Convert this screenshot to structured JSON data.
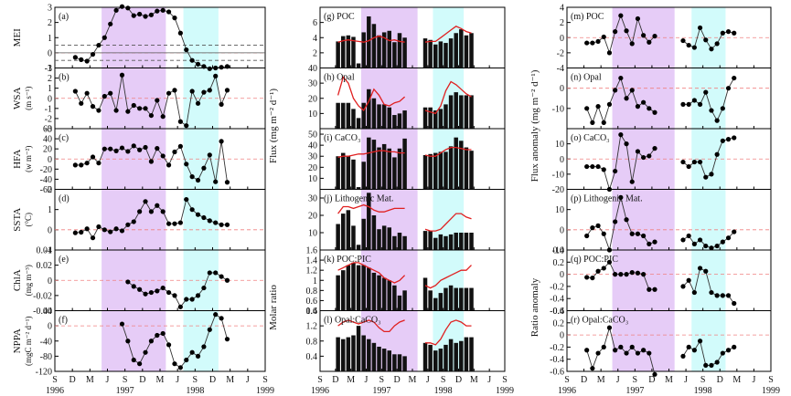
{
  "colors": {
    "purple": "#e6ccf7",
    "cyan": "#d2fbfb",
    "bar": "#111111",
    "model_line": "#e02020",
    "zero_line": "#f08080",
    "mei_ref_line": "#555555"
  },
  "shading": {
    "elnino_month": [
      8,
      19
    ],
    "lanina_month": [
      22,
      28
    ]
  },
  "x_axis": {
    "months": [
      "S",
      "D",
      "M",
      "J",
      "S",
      "D",
      "M",
      "J",
      "S",
      "D",
      "M",
      "J",
      "S"
    ],
    "years": [
      "1996",
      "1997",
      "1998",
      "1999"
    ]
  },
  "column_labels": {
    "flux": "Flux (mg m⁻² d⁻¹)",
    "molar_ratio": "Molar ratio",
    "flux_anomaly": "Flux anomaly (mg m⁻² d⁻¹)",
    "ratio_anomaly": "Ratio anomaly"
  },
  "chart_data": [
    {
      "id": "a",
      "type": "line",
      "label": "(a)",
      "ylabel": "MEI",
      "ylim": [
        -1,
        3
      ],
      "yticks": [
        -1,
        0,
        1,
        2,
        3
      ],
      "ref_lines": [
        0.5,
        -0.5
      ],
      "x": [
        3,
        4,
        5,
        6,
        7,
        8,
        9,
        10,
        11,
        12,
        13,
        14,
        15,
        16,
        17,
        18,
        19,
        20,
        21,
        22,
        23,
        24,
        25,
        26,
        27,
        28,
        29
      ],
      "values": [
        -0.3,
        -0.45,
        -0.55,
        -0.1,
        0.5,
        1.0,
        1.9,
        2.8,
        3.05,
        2.95,
        2.45,
        2.55,
        2.4,
        2.5,
        2.75,
        2.8,
        2.7,
        2.3,
        1.3,
        0.2,
        -0.5,
        -0.75,
        -0.9,
        -1.05,
        -1.0,
        -0.95,
        -0.9
      ]
    },
    {
      "id": "b",
      "type": "line",
      "label": "(b)",
      "ylabel": "WSA",
      "yunit": "(m s⁻¹)",
      "ylim": [
        -3,
        3
      ],
      "yticks": [
        -3,
        -2,
        -1,
        0,
        1,
        2,
        3
      ],
      "x": [
        3,
        4,
        5,
        6,
        7,
        8,
        9,
        10,
        11,
        12,
        13,
        14,
        15,
        16,
        17,
        18,
        19,
        20,
        21,
        22,
        23,
        24,
        25,
        26,
        27,
        28,
        29
      ],
      "values": [
        0.7,
        -0.5,
        0.5,
        -0.8,
        -1.2,
        0.2,
        0.5,
        -1.2,
        2.3,
        -1.3,
        -0.7,
        -1.0,
        -1.0,
        -1.7,
        -0.2,
        -1.8,
        0.5,
        0.8,
        -2.3,
        -2.7,
        0.7,
        -0.5,
        0.6,
        0.8,
        2.2,
        -0.6,
        0.8
      ]
    },
    {
      "id": "c",
      "type": "line",
      "label": "(c)",
      "ylabel": "HFA",
      "yunit": "(w m⁻²)",
      "ylim": [
        -60,
        60
      ],
      "yticks": [
        -60,
        -40,
        -20,
        0,
        20,
        40,
        60
      ],
      "x": [
        3,
        4,
        5,
        6,
        7,
        8,
        9,
        10,
        11,
        12,
        13,
        14,
        15,
        16,
        17,
        18,
        19,
        20,
        21,
        22,
        23,
        24,
        25,
        26,
        27,
        28,
        29
      ],
      "values": [
        -12,
        -12,
        -8,
        4,
        -8,
        20,
        20,
        16,
        22,
        15,
        26,
        18,
        23,
        -5,
        21,
        6,
        -12,
        14,
        25,
        -10,
        -35,
        -42,
        -18,
        8,
        -45,
        35,
        -46
      ]
    },
    {
      "id": "d",
      "type": "line",
      "label": "(d)",
      "ylabel": "SSTA",
      "yunit": "(°C)",
      "ylim": [
        -1,
        2
      ],
      "yticks": [
        -1,
        0,
        1,
        2
      ],
      "x": [
        3,
        4,
        5,
        6,
        7,
        8,
        9,
        10,
        11,
        12,
        13,
        14,
        15,
        16,
        17,
        18,
        19,
        20,
        21,
        22,
        23,
        24,
        25,
        26,
        27,
        28,
        29
      ],
      "values": [
        -0.15,
        -0.12,
        0.05,
        -0.4,
        0.15,
        0.0,
        -0.1,
        0.05,
        -0.05,
        0.25,
        0.4,
        0.9,
        1.4,
        0.9,
        1.2,
        0.9,
        0.3,
        0.3,
        0.35,
        1.5,
        1.0,
        0.75,
        0.6,
        0.45,
        0.35,
        0.25,
        0.25
      ]
    },
    {
      "id": "e",
      "type": "line",
      "label": "(e)",
      "ylabel": "ChlA",
      "yunit": "(mg m⁻³)",
      "ylim": [
        -0.04,
        0.04
      ],
      "yticks": [
        -0.04,
        -0.02,
        0.0,
        0.02,
        0.04
      ],
      "x": [
        12,
        13,
        14,
        15,
        16,
        17,
        18,
        19,
        20,
        21,
        22,
        23,
        24,
        25,
        26,
        27,
        28,
        29
      ],
      "values": [
        -0.002,
        -0.008,
        -0.012,
        -0.018,
        -0.016,
        -0.014,
        -0.01,
        -0.016,
        -0.02,
        -0.035,
        -0.025,
        -0.025,
        -0.02,
        -0.01,
        0.01,
        0.01,
        0.005,
        0.0
      ]
    },
    {
      "id": "f",
      "type": "line",
      "label": "(f)",
      "ylabel": "NPPA",
      "yunit": "(mgC m⁻² d⁻¹)",
      "ylim": [
        -120,
        40
      ],
      "yticks": [
        -120,
        -80,
        -40,
        0,
        40
      ],
      "x": [
        11,
        12,
        13,
        14,
        15,
        16,
        17,
        18,
        19,
        20,
        21,
        22,
        23,
        24,
        25,
        26,
        27,
        28,
        29
      ],
      "values": [
        5,
        -40,
        -90,
        -100,
        -70,
        -40,
        -25,
        -20,
        -50,
        -100,
        -110,
        -90,
        -70,
        -80,
        -55,
        -10,
        30,
        20,
        -35
      ]
    },
    {
      "id": "g",
      "type": "bar",
      "label": "(g) POC",
      "ylim": [
        0,
        8
      ],
      "yticks": [
        2,
        4,
        6
      ],
      "x": [
        3,
        4,
        5,
        6,
        7,
        8,
        9,
        10,
        11,
        12,
        13,
        14,
        15,
        16,
        20,
        21,
        22,
        23,
        24,
        25,
        26,
        27,
        28,
        29
      ],
      "values": [
        3.5,
        4.2,
        4.3,
        4.1,
        0.6,
        4.7,
        6.8,
        5.8,
        4.3,
        4.7,
        4.9,
        3.4,
        4.6,
        4.0,
        3.9,
        3.7,
        3.1,
        3.5,
        3.3,
        3.9,
        4.6,
        5.1,
        4.3,
        4.6
      ],
      "model": [
        3.4,
        3.6,
        3.7,
        3.6,
        3.5,
        3.4,
        3.6,
        4.0,
        4.2,
        4.0,
        3.6,
        3.7,
        3.5,
        3.4,
        3.4,
        3.5,
        3.5,
        4.0,
        4.5,
        5.0,
        5.5,
        5.2,
        4.8,
        4.6
      ]
    },
    {
      "id": "h",
      "type": "bar",
      "label": "(h) Opal",
      "ylim": [
        0,
        40
      ],
      "yticks": [
        10,
        20,
        30,
        40
      ],
      "x": [
        3,
        4,
        5,
        6,
        7,
        8,
        9,
        10,
        11,
        12,
        13,
        14,
        15,
        16,
        20,
        21,
        22,
        23,
        24,
        25,
        26,
        27,
        28,
        29
      ],
      "values": [
        17,
        17,
        17,
        13,
        7,
        17,
        26,
        20,
        16,
        16,
        14,
        9,
        10,
        12,
        14,
        14,
        12,
        13,
        16,
        22,
        24,
        22,
        22,
        22
      ],
      "model": [
        22,
        34,
        30,
        20,
        15,
        12,
        18,
        26,
        22,
        16,
        15,
        17,
        18,
        21,
        12,
        11,
        10,
        15,
        25,
        31,
        29,
        26,
        23,
        21
      ]
    },
    {
      "id": "i",
      "type": "bar",
      "label": "(i) CaCO₃",
      "ylim": [
        0,
        55
      ],
      "yticks": [
        10,
        20,
        30,
        40,
        50
      ],
      "x": [
        3,
        4,
        5,
        6,
        7,
        8,
        9,
        10,
        11,
        12,
        13,
        14,
        15,
        16,
        20,
        21,
        22,
        23,
        24,
        25,
        26,
        27,
        28,
        29
      ],
      "values": [
        30,
        33,
        30,
        27,
        2,
        25,
        47,
        45,
        38,
        41,
        37,
        29,
        37,
        46,
        31,
        32,
        33,
        34,
        34,
        39,
        47,
        44,
        38,
        35
      ],
      "model": [
        29,
        30,
        30,
        31,
        32,
        32,
        33,
        34,
        35,
        35,
        34,
        34,
        33,
        33,
        31,
        30,
        30,
        33,
        36,
        38,
        38,
        37,
        36,
        36
      ]
    },
    {
      "id": "j",
      "type": "bar",
      "label": "(j) Lithogenic Mat.",
      "ylim": [
        0,
        35
      ],
      "yticks": [
        10,
        20,
        30
      ],
      "x": [
        3,
        4,
        5,
        6,
        7,
        8,
        9,
        10,
        11,
        12,
        13,
        14,
        15,
        16,
        20,
        21,
        22,
        23,
        24,
        25,
        26,
        27,
        28,
        29
      ],
      "values": [
        15,
        21,
        23,
        14,
        3,
        18,
        33,
        20,
        12,
        14,
        13,
        8,
        10,
        8,
        11,
        11,
        7,
        9,
        8,
        9,
        10,
        10,
        10,
        10
      ],
      "model": [
        21,
        25,
        25,
        24,
        25,
        26,
        25,
        23,
        22,
        22,
        23,
        24,
        24,
        24,
        12,
        11,
        11,
        12,
        15,
        18,
        21,
        21,
        19,
        18
      ]
    },
    {
      "id": "k",
      "type": "bar",
      "label": "(k) POC:PIC",
      "ylim": [
        0.4,
        1.6
      ],
      "yticks": [
        0.4,
        0.6,
        0.8,
        1.0,
        1.2,
        1.4,
        1.6
      ],
      "x": [
        3,
        4,
        5,
        6,
        7,
        8,
        9,
        10,
        11,
        12,
        13,
        14,
        15,
        16,
        20,
        21,
        22,
        23,
        24,
        25,
        26,
        27,
        28,
        29
      ],
      "values": [
        1.1,
        1.2,
        1.3,
        1.35,
        1.3,
        1.3,
        1.25,
        1.15,
        1.1,
        1.05,
        1.0,
        0.9,
        0.7,
        0.8,
        1.05,
        0.8,
        0.65,
        0.75,
        0.85,
        0.9,
        0.85,
        0.85,
        0.85,
        0.85
      ],
      "model": [
        1.2,
        1.25,
        1.3,
        1.35,
        1.35,
        1.3,
        1.25,
        1.2,
        1.15,
        1.05,
        1.0,
        0.95,
        1.0,
        1.1,
        0.9,
        0.85,
        0.9,
        1.0,
        1.05,
        1.1,
        1.15,
        1.2,
        1.2,
        1.3
      ]
    },
    {
      "id": "l",
      "type": "bar",
      "label": "(l) Opal:CaCO₃",
      "ylim": [
        0,
        1.6
      ],
      "yticks": [
        0.4,
        0.8,
        1.2,
        1.6
      ],
      "x": [
        3,
        4,
        5,
        6,
        7,
        8,
        9,
        10,
        11,
        12,
        13,
        14,
        15,
        16,
        20,
        21,
        22,
        23,
        24,
        25,
        26,
        27,
        28,
        29
      ],
      "values": [
        0.9,
        0.85,
        0.9,
        0.95,
        1.2,
        0.95,
        0.85,
        0.75,
        0.65,
        0.6,
        0.55,
        0.45,
        0.45,
        0.4,
        0.75,
        0.7,
        0.55,
        0.6,
        0.7,
        0.85,
        0.75,
        0.8,
        0.9,
        0.9
      ],
      "model": [
        1.2,
        1.3,
        1.35,
        1.3,
        1.25,
        1.3,
        1.35,
        1.3,
        1.15,
        1.05,
        1.05,
        1.2,
        1.3,
        1.35,
        0.75,
        0.75,
        0.7,
        0.85,
        1.1,
        1.3,
        1.35,
        1.3,
        1.2,
        1.2
      ]
    },
    {
      "id": "m",
      "type": "line",
      "label": "(m) POC",
      "ylim": [
        -4,
        4
      ],
      "yticks": [
        -4,
        -2,
        0,
        2,
        4
      ],
      "x": [
        3,
        4,
        5,
        6,
        7,
        8,
        9,
        10,
        11,
        12,
        13,
        14,
        15,
        20,
        21,
        22,
        23,
        24,
        25,
        26,
        27,
        28,
        29
      ],
      "values": [
        -0.7,
        -0.7,
        -0.5,
        0.1,
        -2.0,
        0.8,
        2.9,
        0.9,
        -0.8,
        2.5,
        0.3,
        -0.6,
        0.2,
        -0.4,
        -1.0,
        -1.3,
        1.3,
        -0.3,
        -1.5,
        -0.8,
        0.6,
        0.8,
        0.6
      ]
    },
    {
      "id": "n",
      "type": "line",
      "label": "(n) Opal",
      "ylim": [
        -20,
        10
      ],
      "yticks": [
        -10,
        0
      ],
      "x": [
        3,
        4,
        5,
        6,
        7,
        8,
        9,
        10,
        11,
        12,
        13,
        14,
        15,
        20,
        21,
        22,
        23,
        24,
        25,
        26,
        27,
        28,
        29
      ],
      "values": [
        -10,
        -17,
        -9,
        -17,
        -8,
        -1,
        5,
        -5,
        -1,
        -9,
        -7,
        -10,
        -12,
        -8,
        -8,
        -6,
        -8,
        -2,
        -11,
        -16,
        -10,
        0,
        5
      ]
    },
    {
      "id": "o",
      "type": "line",
      "label": "(o) CaCO₃",
      "ylim": [
        -20,
        20
      ],
      "yticks": [
        -20,
        -10,
        0,
        10
      ],
      "x": [
        3,
        4,
        5,
        6,
        7,
        8,
        9,
        10,
        11,
        12,
        13,
        14,
        15,
        20,
        21,
        22,
        23,
        24,
        25,
        26,
        27,
        28,
        29
      ],
      "values": [
        -5,
        -5,
        -5,
        -7,
        -20,
        -8,
        16,
        10,
        -15,
        5,
        1,
        2,
        7,
        -2,
        -5,
        -2,
        -2,
        -12,
        -10,
        3,
        12,
        13,
        14
      ]
    },
    {
      "id": "p",
      "type": "line",
      "label": "(p) Lithogenic Mat.",
      "ylim": [
        -10,
        20
      ],
      "yticks": [
        -10,
        0,
        10
      ],
      "x": [
        3,
        4,
        5,
        6,
        7,
        8,
        9,
        10,
        11,
        12,
        13,
        14,
        15,
        20,
        21,
        22,
        23,
        24,
        25,
        26,
        27,
        28,
        29
      ],
      "values": [
        -3,
        1,
        2,
        -2,
        -10,
        4,
        16,
        5,
        -2,
        -2,
        -3,
        -7,
        -6,
        -5,
        -3,
        -7,
        -5,
        -8,
        -9,
        -8,
        -6,
        -4,
        -1
      ]
    },
    {
      "id": "q",
      "type": "line",
      "label": "(q) POC:PIC",
      "ylim": [
        -0.6,
        0.4
      ],
      "yticks": [
        -0.6,
        -0.4,
        -0.2,
        0.0,
        0.2,
        0.4
      ],
      "x": [
        3,
        4,
        5,
        6,
        7,
        8,
        9,
        10,
        11,
        12,
        13,
        14,
        15,
        20,
        21,
        22,
        23,
        24,
        25,
        26,
        27,
        28,
        29
      ],
      "values": [
        -0.05,
        -0.06,
        0.05,
        0.1,
        0.2,
        0.0,
        0.0,
        0.0,
        0.03,
        0.02,
        0.0,
        -0.25,
        -0.25,
        -0.2,
        -0.1,
        -0.3,
        0.1,
        0.05,
        -0.3,
        -0.35,
        -0.35,
        -0.35,
        -0.48
      ]
    },
    {
      "id": "r",
      "type": "line",
      "label": "(r) Opal:CaCO₃",
      "ylim": [
        -0.6,
        0.4
      ],
      "yticks": [
        -0.6,
        -0.4,
        -0.2,
        0.0,
        0.2,
        0.4
      ],
      "x": [
        3,
        4,
        5,
        6,
        7,
        8,
        9,
        10,
        11,
        12,
        13,
        14,
        15,
        20,
        21,
        22,
        23,
        24,
        25,
        26,
        27,
        28,
        29
      ],
      "values": [
        -0.25,
        -0.55,
        -0.3,
        -0.2,
        0.12,
        -0.25,
        -0.2,
        -0.3,
        -0.2,
        -0.3,
        -0.25,
        -0.3,
        -0.65,
        -0.35,
        -0.2,
        -0.25,
        -0.1,
        -0.5,
        -0.5,
        -0.45,
        -0.3,
        -0.25,
        -0.2
      ]
    }
  ]
}
